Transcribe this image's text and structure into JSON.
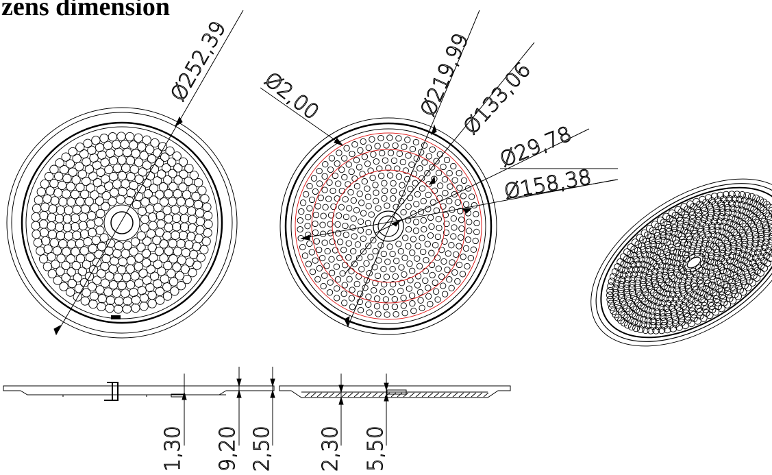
{
  "title": "zens dimension",
  "dimensions": {
    "plate_diameter": "Ø252,39",
    "hole_diameter": "Ø2,00",
    "hole_area_diameter": "Ø219,99",
    "inner_circle_diameter": "Ø133,06",
    "center_diameter": "Ø29,78",
    "middle_circle_diameter": "Ø158,38",
    "section_1": "1,30",
    "section_2": "9,20",
    "section_3": "2,50",
    "section_4": "2,30",
    "section_5": "5,50"
  },
  "colors": {
    "line": "#000000",
    "construction": "#e02020",
    "background": "#ffffff"
  }
}
